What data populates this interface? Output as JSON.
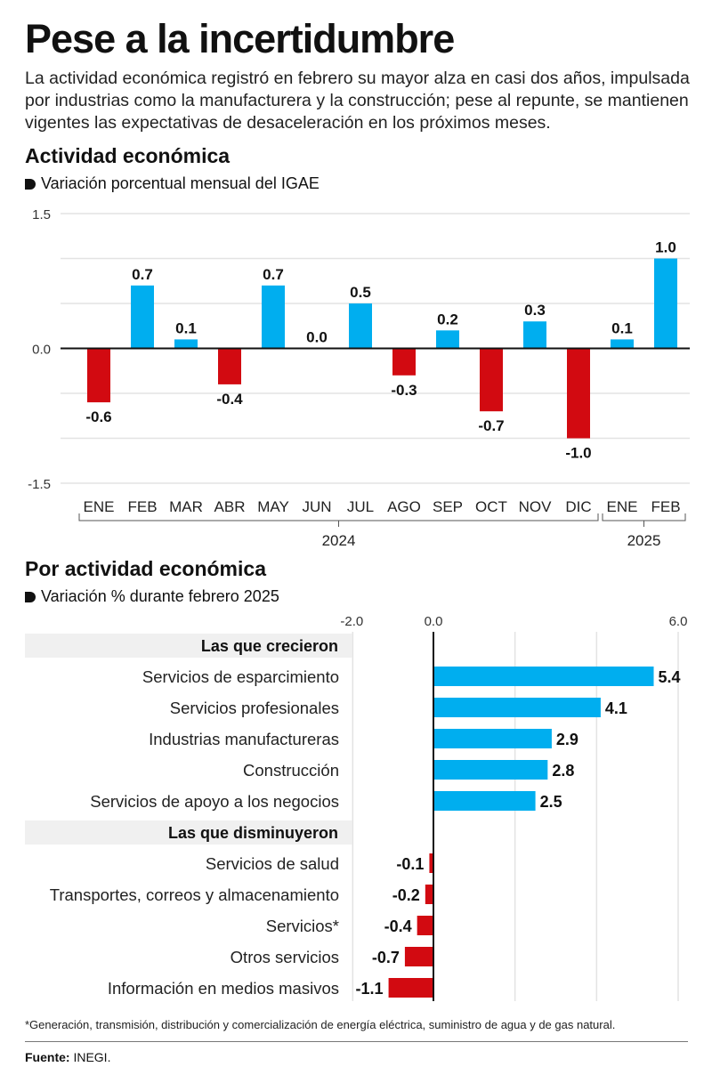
{
  "header": {
    "title": "Pese a la incertidumbre",
    "lede": "La actividad económica registró en febrero su mayor alza en casi dos años, impulsada por industrias como la manufacturera y la construcción; pese al repunte, se mantienen vigentes las expectativas de desaceleración en los próximos meses."
  },
  "section1": {
    "title": "Actividad económica",
    "subtitle": "Variación porcentual mensual del IGAE",
    "bullet_icon": "bullet-icon"
  },
  "section2": {
    "title": "Por actividad económica",
    "subtitle": "Variación % durante febrero 2025",
    "bullet_icon": "bullet-icon"
  },
  "colors": {
    "positive": "#00aeef",
    "negative": "#d20a11",
    "grid": "#e3e3e3",
    "axis": "#111111",
    "band": "#f0f0f0"
  },
  "chart_data": [
    {
      "type": "bar",
      "title": "Actividad económica",
      "subtitle": "Variación porcentual mensual del IGAE",
      "categories": [
        "ENE",
        "FEB",
        "MAR",
        "ABR",
        "MAY",
        "JUN",
        "JUL",
        "AGO",
        "SEP",
        "OCT",
        "NOV",
        "DIC",
        "ENE",
        "FEB"
      ],
      "values": [
        -0.6,
        0.7,
        0.1,
        -0.4,
        0.7,
        0.0,
        0.5,
        -0.3,
        0.2,
        -0.7,
        0.3,
        -1.0,
        0.1,
        1.0
      ],
      "labels": [
        "-0.6",
        "0.7",
        "0.1",
        "-0.4",
        "0.7",
        "0.0",
        "0.5",
        "-0.3",
        "0.2",
        "-0.7",
        "0.3",
        "-1.0",
        "0.1",
        "1.0"
      ],
      "groups": [
        {
          "label": "2024",
          "from": 0,
          "to": 11
        },
        {
          "label": "2025",
          "from": 12,
          "to": 13
        }
      ],
      "ylim": [
        -1.5,
        1.5
      ],
      "yticks": [
        1.5,
        0.0,
        -1.5
      ],
      "ytick_labels": [
        "1.5",
        "0.0",
        "-1.5"
      ],
      "gridlines": [
        1.5,
        1.0,
        0.5,
        -0.5,
        -1.0,
        -1.5
      ],
      "grid": true,
      "xlabel": "",
      "ylabel": ""
    },
    {
      "type": "bar",
      "orientation": "horizontal",
      "title": "Por actividad económica",
      "subtitle": "Variación % durante febrero 2025",
      "xlim": [
        -2.0,
        6.0
      ],
      "xticks": [
        -2.0,
        0.0,
        6.0
      ],
      "xtick_labels": [
        "-2.0",
        "0.0",
        "6.0"
      ],
      "gridlines": [
        2.0,
        4.0,
        6.0
      ],
      "grid": true,
      "groups": [
        {
          "label": "Las que crecieron",
          "items": [
            {
              "category": "Servicios de esparcimiento",
              "value": 5.4,
              "label": "5.4"
            },
            {
              "category": "Servicios profesionales",
              "value": 4.1,
              "label": "4.1"
            },
            {
              "category": "Industrias manufactureras",
              "value": 2.9,
              "label": "2.9"
            },
            {
              "category": "Construcción",
              "value": 2.8,
              "label": "2.8"
            },
            {
              "category": "Servicios de apoyo a los negocios",
              "value": 2.5,
              "label": "2.5"
            }
          ]
        },
        {
          "label": "Las que disminuyeron",
          "items": [
            {
              "category": "Servicios de salud",
              "value": -0.1,
              "label": "-0.1"
            },
            {
              "category": "Transportes, correos y almacenamiento",
              "value": -0.2,
              "label": "-0.2"
            },
            {
              "category": "Servicios*",
              "value": -0.4,
              "label": "-0.4"
            },
            {
              "category": "Otros servicios",
              "value": -0.7,
              "label": "-0.7"
            },
            {
              "category": "Información en medios masivos",
              "value": -1.1,
              "label": "-1.1"
            }
          ]
        }
      ]
    }
  ],
  "footer": {
    "footnote": "*Generación, transmisión, distribución y comercialización de energía eléctrica, suministro de agua y de gas natural.",
    "source_label": "Fuente:",
    "source_value": " INEGI."
  }
}
